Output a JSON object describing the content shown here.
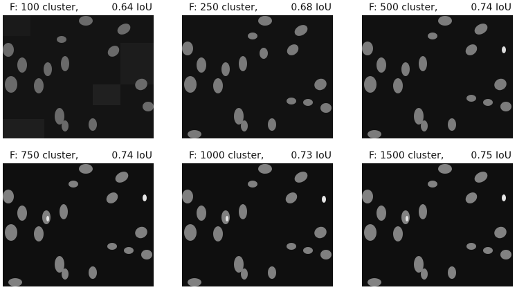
{
  "panels": [
    {
      "label": "F: 100 cluster,",
      "iou": "0.64 IoU"
    },
    {
      "label": "F: 250 cluster,",
      "iou": "0.68 IoU"
    },
    {
      "label": "F: 500 cluster,",
      "iou": "0.74 IoU"
    },
    {
      "label": "F: 750 cluster,",
      "iou": "0.74 IoU"
    },
    {
      "label": "F: 1000 cluster,",
      "iou": "0.73 IoU"
    },
    {
      "label": "F: 1500 cluster,",
      "iou": "0.75 IoU"
    }
  ]
}
